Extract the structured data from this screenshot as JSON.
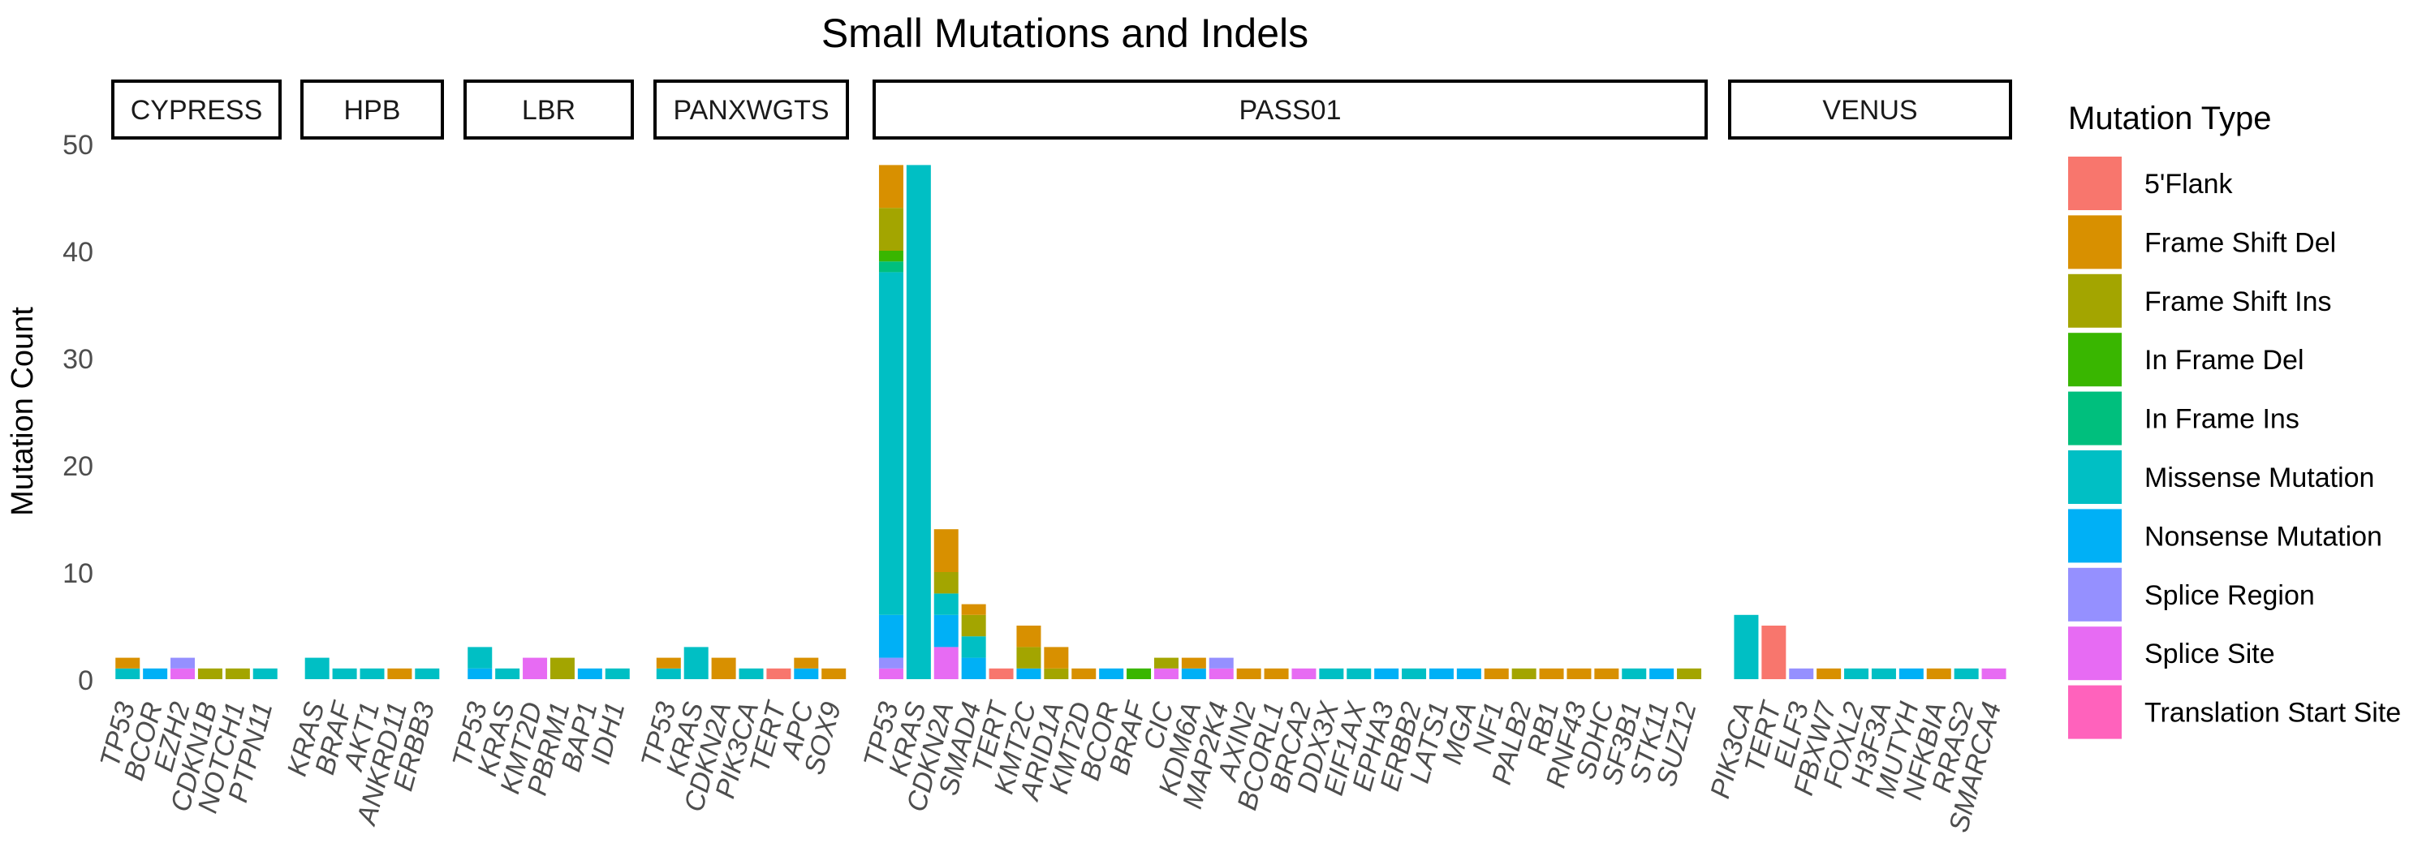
{
  "chart_data": {
    "type": "bar",
    "stacked": true,
    "faceted": true,
    "title": "Small Mutations and Indels",
    "ylabel": "Mutation Count",
    "xlabel": "",
    "ylim": [
      0,
      50
    ],
    "yticks": [
      0,
      10,
      20,
      30,
      40,
      50
    ],
    "grid": false,
    "legend_title": "Mutation Type",
    "legend_position": "right",
    "types": [
      {
        "name": "5'Flank",
        "color": "#F8766D"
      },
      {
        "name": "Frame Shift Del",
        "color": "#D89000"
      },
      {
        "name": "Frame Shift Ins",
        "color": "#A3A500"
      },
      {
        "name": "In Frame Del",
        "color": "#39B600"
      },
      {
        "name": "In Frame Ins",
        "color": "#00BF7D"
      },
      {
        "name": "Missense Mutation",
        "color": "#00BFC4"
      },
      {
        "name": "Nonsense Mutation",
        "color": "#00B0F6"
      },
      {
        "name": "Splice Region",
        "color": "#9590FF"
      },
      {
        "name": "Splice Site",
        "color": "#E76BF3"
      },
      {
        "name": "Translation Start Site",
        "color": "#FF62BC"
      }
    ],
    "panels": [
      {
        "name": "CYPRESS",
        "genes": [
          {
            "gene": "TP53",
            "counts": {
              "Frame Shift Del": 1,
              "Missense Mutation": 1
            }
          },
          {
            "gene": "BCOR",
            "counts": {
              "Nonsense Mutation": 1
            }
          },
          {
            "gene": "EZH2",
            "counts": {
              "Splice Region": 1,
              "Splice Site": 1
            }
          },
          {
            "gene": "CDKN1B",
            "counts": {
              "Frame Shift Ins": 1
            }
          },
          {
            "gene": "NOTCH1",
            "counts": {
              "Frame Shift Ins": 1
            }
          },
          {
            "gene": "PTPN11",
            "counts": {
              "Missense Mutation": 1
            }
          }
        ]
      },
      {
        "name": "HPB",
        "genes": [
          {
            "gene": "KRAS",
            "counts": {
              "Missense Mutation": 2
            }
          },
          {
            "gene": "BRAF",
            "counts": {
              "Missense Mutation": 1
            }
          },
          {
            "gene": "AKT1",
            "counts": {
              "Missense Mutation": 1
            }
          },
          {
            "gene": "ANKRD11",
            "counts": {
              "Frame Shift Del": 1
            }
          },
          {
            "gene": "ERBB3",
            "counts": {
              "Missense Mutation": 1
            }
          }
        ]
      },
      {
        "name": "LBR",
        "genes": [
          {
            "gene": "TP53",
            "counts": {
              "Missense Mutation": 2,
              "Nonsense Mutation": 1
            }
          },
          {
            "gene": "KRAS",
            "counts": {
              "Missense Mutation": 1
            }
          },
          {
            "gene": "KMT2D",
            "counts": {
              "Splice Site": 2
            }
          },
          {
            "gene": "PBRM1",
            "counts": {
              "Frame Shift Ins": 2
            }
          },
          {
            "gene": "BAP1",
            "counts": {
              "Nonsense Mutation": 1
            }
          },
          {
            "gene": "IDH1",
            "counts": {
              "Missense Mutation": 1
            }
          }
        ]
      },
      {
        "name": "PANXWGTS",
        "genes": [
          {
            "gene": "TP53",
            "counts": {
              "Frame Shift Del": 1,
              "Missense Mutation": 1
            }
          },
          {
            "gene": "KRAS",
            "counts": {
              "Missense Mutation": 3
            }
          },
          {
            "gene": "CDKN2A",
            "counts": {
              "Frame Shift Del": 2
            }
          },
          {
            "gene": "PIK3CA",
            "counts": {
              "Missense Mutation": 1
            }
          },
          {
            "gene": "TERT",
            "counts": {
              "5'Flank": 1
            }
          },
          {
            "gene": "APC",
            "counts": {
              "Frame Shift Del": 1,
              "Nonsense Mutation": 1
            }
          },
          {
            "gene": "SOX9",
            "counts": {
              "Frame Shift Del": 1
            }
          }
        ]
      },
      {
        "name": "PASS01",
        "genes": [
          {
            "gene": "TP53",
            "counts": {
              "Frame Shift Del": 4,
              "Frame Shift Ins": 4,
              "In Frame Del": 1,
              "In Frame Ins": 1,
              "Missense Mutation": 32,
              "Nonsense Mutation": 4,
              "Splice Region": 1,
              "Splice Site": 1
            }
          },
          {
            "gene": "KRAS",
            "counts": {
              "Missense Mutation": 48
            }
          },
          {
            "gene": "CDKN2A",
            "counts": {
              "Frame Shift Del": 4,
              "Frame Shift Ins": 2,
              "Missense Mutation": 2,
              "Nonsense Mutation": 3,
              "Splice Site": 3
            }
          },
          {
            "gene": "SMAD4",
            "counts": {
              "Frame Shift Del": 1,
              "Frame Shift Ins": 2,
              "Missense Mutation": 2,
              "Nonsense Mutation": 2
            }
          },
          {
            "gene": "TERT",
            "counts": {
              "5'Flank": 1
            }
          },
          {
            "gene": "KMT2C",
            "counts": {
              "Frame Shift Del": 2,
              "Frame Shift Ins": 2,
              "Nonsense Mutation": 1
            }
          },
          {
            "gene": "ARID1A",
            "counts": {
              "Frame Shift Del": 2,
              "Frame Shift Ins": 1
            }
          },
          {
            "gene": "KMT2D",
            "counts": {
              "Frame Shift Del": 1
            }
          },
          {
            "gene": "BCOR",
            "counts": {
              "Nonsense Mutation": 1
            }
          },
          {
            "gene": "BRAF",
            "counts": {
              "In Frame Del": 1
            }
          },
          {
            "gene": "CIC",
            "counts": {
              "Frame Shift Ins": 1,
              "Splice Site": 1
            }
          },
          {
            "gene": "KDM6A",
            "counts": {
              "Frame Shift Del": 1,
              "Nonsense Mutation": 1
            }
          },
          {
            "gene": "MAP2K4",
            "counts": {
              "Splice Region": 1,
              "Splice Site": 1
            }
          },
          {
            "gene": "AXIN2",
            "counts": {
              "Frame Shift Del": 1
            }
          },
          {
            "gene": "BCORL1",
            "counts": {
              "Frame Shift Del": 1
            }
          },
          {
            "gene": "BRCA2",
            "counts": {
              "Splice Site": 1
            }
          },
          {
            "gene": "DDX3X",
            "counts": {
              "Missense Mutation": 1
            }
          },
          {
            "gene": "EIF1AX",
            "counts": {
              "Missense Mutation": 1
            }
          },
          {
            "gene": "EPHA3",
            "counts": {
              "Nonsense Mutation": 1
            }
          },
          {
            "gene": "ERBB2",
            "counts": {
              "Missense Mutation": 1
            }
          },
          {
            "gene": "LATS1",
            "counts": {
              "Nonsense Mutation": 1
            }
          },
          {
            "gene": "MGA",
            "counts": {
              "Nonsense Mutation": 1
            }
          },
          {
            "gene": "NF1",
            "counts": {
              "Frame Shift Del": 1
            }
          },
          {
            "gene": "PALB2",
            "counts": {
              "Frame Shift Ins": 1
            }
          },
          {
            "gene": "RB1",
            "counts": {
              "Frame Shift Del": 1
            }
          },
          {
            "gene": "RNF43",
            "counts": {
              "Frame Shift Del": 1
            }
          },
          {
            "gene": "SDHC",
            "counts": {
              "Frame Shift Del": 1
            }
          },
          {
            "gene": "SF3B1",
            "counts": {
              "Missense Mutation": 1
            }
          },
          {
            "gene": "STK11",
            "counts": {
              "Nonsense Mutation": 1
            }
          },
          {
            "gene": "SUZ12",
            "counts": {
              "Frame Shift Ins": 1
            }
          }
        ]
      },
      {
        "name": "VENUS",
        "genes": [
          {
            "gene": "PIK3CA",
            "counts": {
              "Missense Mutation": 6
            }
          },
          {
            "gene": "TERT",
            "counts": {
              "5'Flank": 5
            }
          },
          {
            "gene": "ELF3",
            "counts": {
              "Splice Region": 1
            }
          },
          {
            "gene": "FBXW7",
            "counts": {
              "Frame Shift Del": 1
            }
          },
          {
            "gene": "FOXL2",
            "counts": {
              "Missense Mutation": 1
            }
          },
          {
            "gene": "H3F3A",
            "counts": {
              "Missense Mutation": 1
            }
          },
          {
            "gene": "MUTYH",
            "counts": {
              "Nonsense Mutation": 1
            }
          },
          {
            "gene": "NFKBIA",
            "counts": {
              "Frame Shift Del": 1
            }
          },
          {
            "gene": "RRAS2",
            "counts": {
              "Missense Mutation": 1
            }
          },
          {
            "gene": "SMARCA4",
            "counts": {
              "Splice Site": 1
            }
          }
        ]
      }
    ]
  }
}
